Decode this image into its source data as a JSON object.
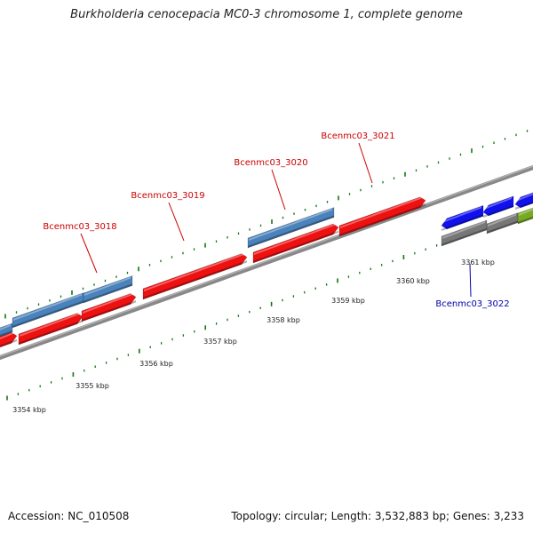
{
  "title": "Burkholderia cenocepacia MC0-3 chromosome 1, complete genome",
  "footer": {
    "accession": "Accession: NC_010508",
    "summary": "Topology: circular; Length: 3,532,883 bp; Genes: 3,233"
  },
  "scale_labels": [
    "3354 kbp",
    "3355 kbp",
    "3356 kbp",
    "3357 kbp",
    "3358 kbp",
    "3359 kbp",
    "3360 kbp",
    "3361 kbp"
  ],
  "gene_labels": [
    {
      "text": "Bcenmc03_3018",
      "color": "#cc0000"
    },
    {
      "text": "Bcenmc03_3019",
      "color": "#cc0000"
    },
    {
      "text": "Bcenmc03_3020",
      "color": "#cc0000"
    },
    {
      "text": "Bcenmc03_3021",
      "color": "#cc0000"
    },
    {
      "text": "Bcenmc03_3022",
      "color": "#0000aa"
    }
  ],
  "colors": {
    "cds_forward": "#ee1111",
    "feature_blue": "#4a82bb",
    "cds_reverse": "#1111ee",
    "feature_gray": "#777777",
    "feature_green": "#77aa22",
    "backbone": "#888888",
    "tick": "#117711"
  }
}
